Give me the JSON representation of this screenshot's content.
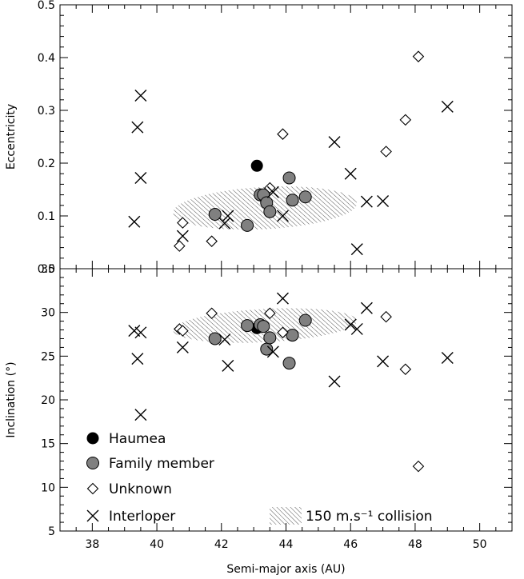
{
  "chart_data": [
    {
      "type": "scatter",
      "title": "",
      "xlabel": "",
      "ylabel": "Eccentricity",
      "xlim": [
        37,
        51
      ],
      "ylim": [
        0.0,
        0.5
      ],
      "yticks": [
        "0.0",
        "0.1",
        "0.2",
        "0.3",
        "0.4",
        "0.5"
      ],
      "grid": false,
      "collision_region": {
        "x_range": [
          40.5,
          46.2
        ],
        "y_center": 0.115,
        "y_half_width": 0.04
      },
      "series": [
        {
          "name": "Haumea",
          "marker": "filled-black-circle",
          "points": [
            [
              43.1,
              0.195
            ]
          ]
        },
        {
          "name": "Family member",
          "marker": "gray-circle",
          "points": [
            [
              41.8,
              0.103
            ],
            [
              42.8,
              0.082
            ],
            [
              43.2,
              0.14
            ],
            [
              43.3,
              0.14
            ],
            [
              43.4,
              0.125
            ],
            [
              43.5,
              0.108
            ],
            [
              44.1,
              0.172
            ],
            [
              44.2,
              0.13
            ],
            [
              44.6,
              0.136
            ]
          ]
        },
        {
          "name": "Unknown",
          "marker": "open-diamond",
          "points": [
            [
              40.7,
              0.043
            ],
            [
              40.8,
              0.087
            ],
            [
              41.7,
              0.052
            ],
            [
              43.5,
              0.153
            ],
            [
              43.9,
              0.255
            ],
            [
              47.1,
              0.222
            ],
            [
              47.7,
              0.282
            ],
            [
              48.1,
              0.402
            ]
          ]
        },
        {
          "name": "Interloper",
          "marker": "x-cross",
          "points": [
            [
              39.3,
              0.089
            ],
            [
              39.4,
              0.268
            ],
            [
              39.5,
              0.172
            ],
            [
              39.5,
              0.328
            ],
            [
              40.8,
              0.062
            ],
            [
              42.1,
              0.086
            ],
            [
              42.2,
              0.1
            ],
            [
              43.6,
              0.145
            ],
            [
              43.9,
              0.1
            ],
            [
              45.5,
              0.24
            ],
            [
              46.0,
              0.18
            ],
            [
              46.2,
              0.037
            ],
            [
              46.5,
              0.127
            ],
            [
              47.0,
              0.128
            ],
            [
              49.0,
              0.307
            ]
          ]
        }
      ]
    },
    {
      "type": "scatter",
      "title": "",
      "xlabel": "Semi-major axis (AU)",
      "ylabel": "Inclination (°)",
      "xlim": [
        37,
        51
      ],
      "ylim": [
        5,
        35
      ],
      "xticks": [
        "38",
        "40",
        "42",
        "44",
        "46",
        "48",
        "50"
      ],
      "yticks": [
        "5",
        "10",
        "15",
        "20",
        "25",
        "30",
        "35"
      ],
      "grid": false,
      "legend_position": "bottom-left",
      "collision_region": {
        "x_range": [
          40.5,
          46.2
        ],
        "y_center": 28.5,
        "y_half_width": 1.9
      },
      "series": [
        {
          "name": "Haumea",
          "marker": "filled-black-circle",
          "points": [
            [
              43.1,
              28.2
            ]
          ]
        },
        {
          "name": "Family member",
          "marker": "gray-circle",
          "points": [
            [
              41.8,
              27.0
            ],
            [
              42.8,
              28.5
            ],
            [
              43.2,
              28.6
            ],
            [
              43.3,
              28.4
            ],
            [
              43.4,
              25.8
            ],
            [
              43.5,
              27.1
            ],
            [
              44.1,
              24.2
            ],
            [
              44.2,
              27.4
            ],
            [
              44.6,
              29.1
            ]
          ]
        },
        {
          "name": "Unknown",
          "marker": "open-diamond",
          "points": [
            [
              40.7,
              28.1
            ],
            [
              40.8,
              27.9
            ],
            [
              41.7,
              29.9
            ],
            [
              43.5,
              29.9
            ],
            [
              43.9,
              27.7
            ],
            [
              47.1,
              29.5
            ],
            [
              47.7,
              23.5
            ],
            [
              48.1,
              12.4
            ]
          ]
        },
        {
          "name": "Interloper",
          "marker": "x-cross",
          "points": [
            [
              39.3,
              27.9
            ],
            [
              39.4,
              24.7
            ],
            [
              39.5,
              27.7
            ],
            [
              39.5,
              18.3
            ],
            [
              40.8,
              26.0
            ],
            [
              42.1,
              26.9
            ],
            [
              42.2,
              23.9
            ],
            [
              43.6,
              25.5
            ],
            [
              43.9,
              31.6
            ],
            [
              45.5,
              22.1
            ],
            [
              46.0,
              28.6
            ],
            [
              46.2,
              28.1
            ],
            [
              46.5,
              30.5
            ],
            [
              47.0,
              24.4
            ],
            [
              49.0,
              24.8
            ]
          ]
        }
      ]
    }
  ],
  "legend": {
    "items": [
      {
        "label": "Haumea",
        "marker": "filled-black-circle"
      },
      {
        "label": "Family member",
        "marker": "gray-circle"
      },
      {
        "label": "Unknown",
        "marker": "open-diamond"
      },
      {
        "label": "Interloper",
        "marker": "x-cross"
      }
    ],
    "collision_label": "150 m.s⁻¹ collision"
  },
  "colors": {
    "haumea": "#000000",
    "family_member": "#808080",
    "unknown": "#ffffff",
    "interloper": "#000000",
    "hatch": "#555555",
    "axis": "#000000"
  }
}
